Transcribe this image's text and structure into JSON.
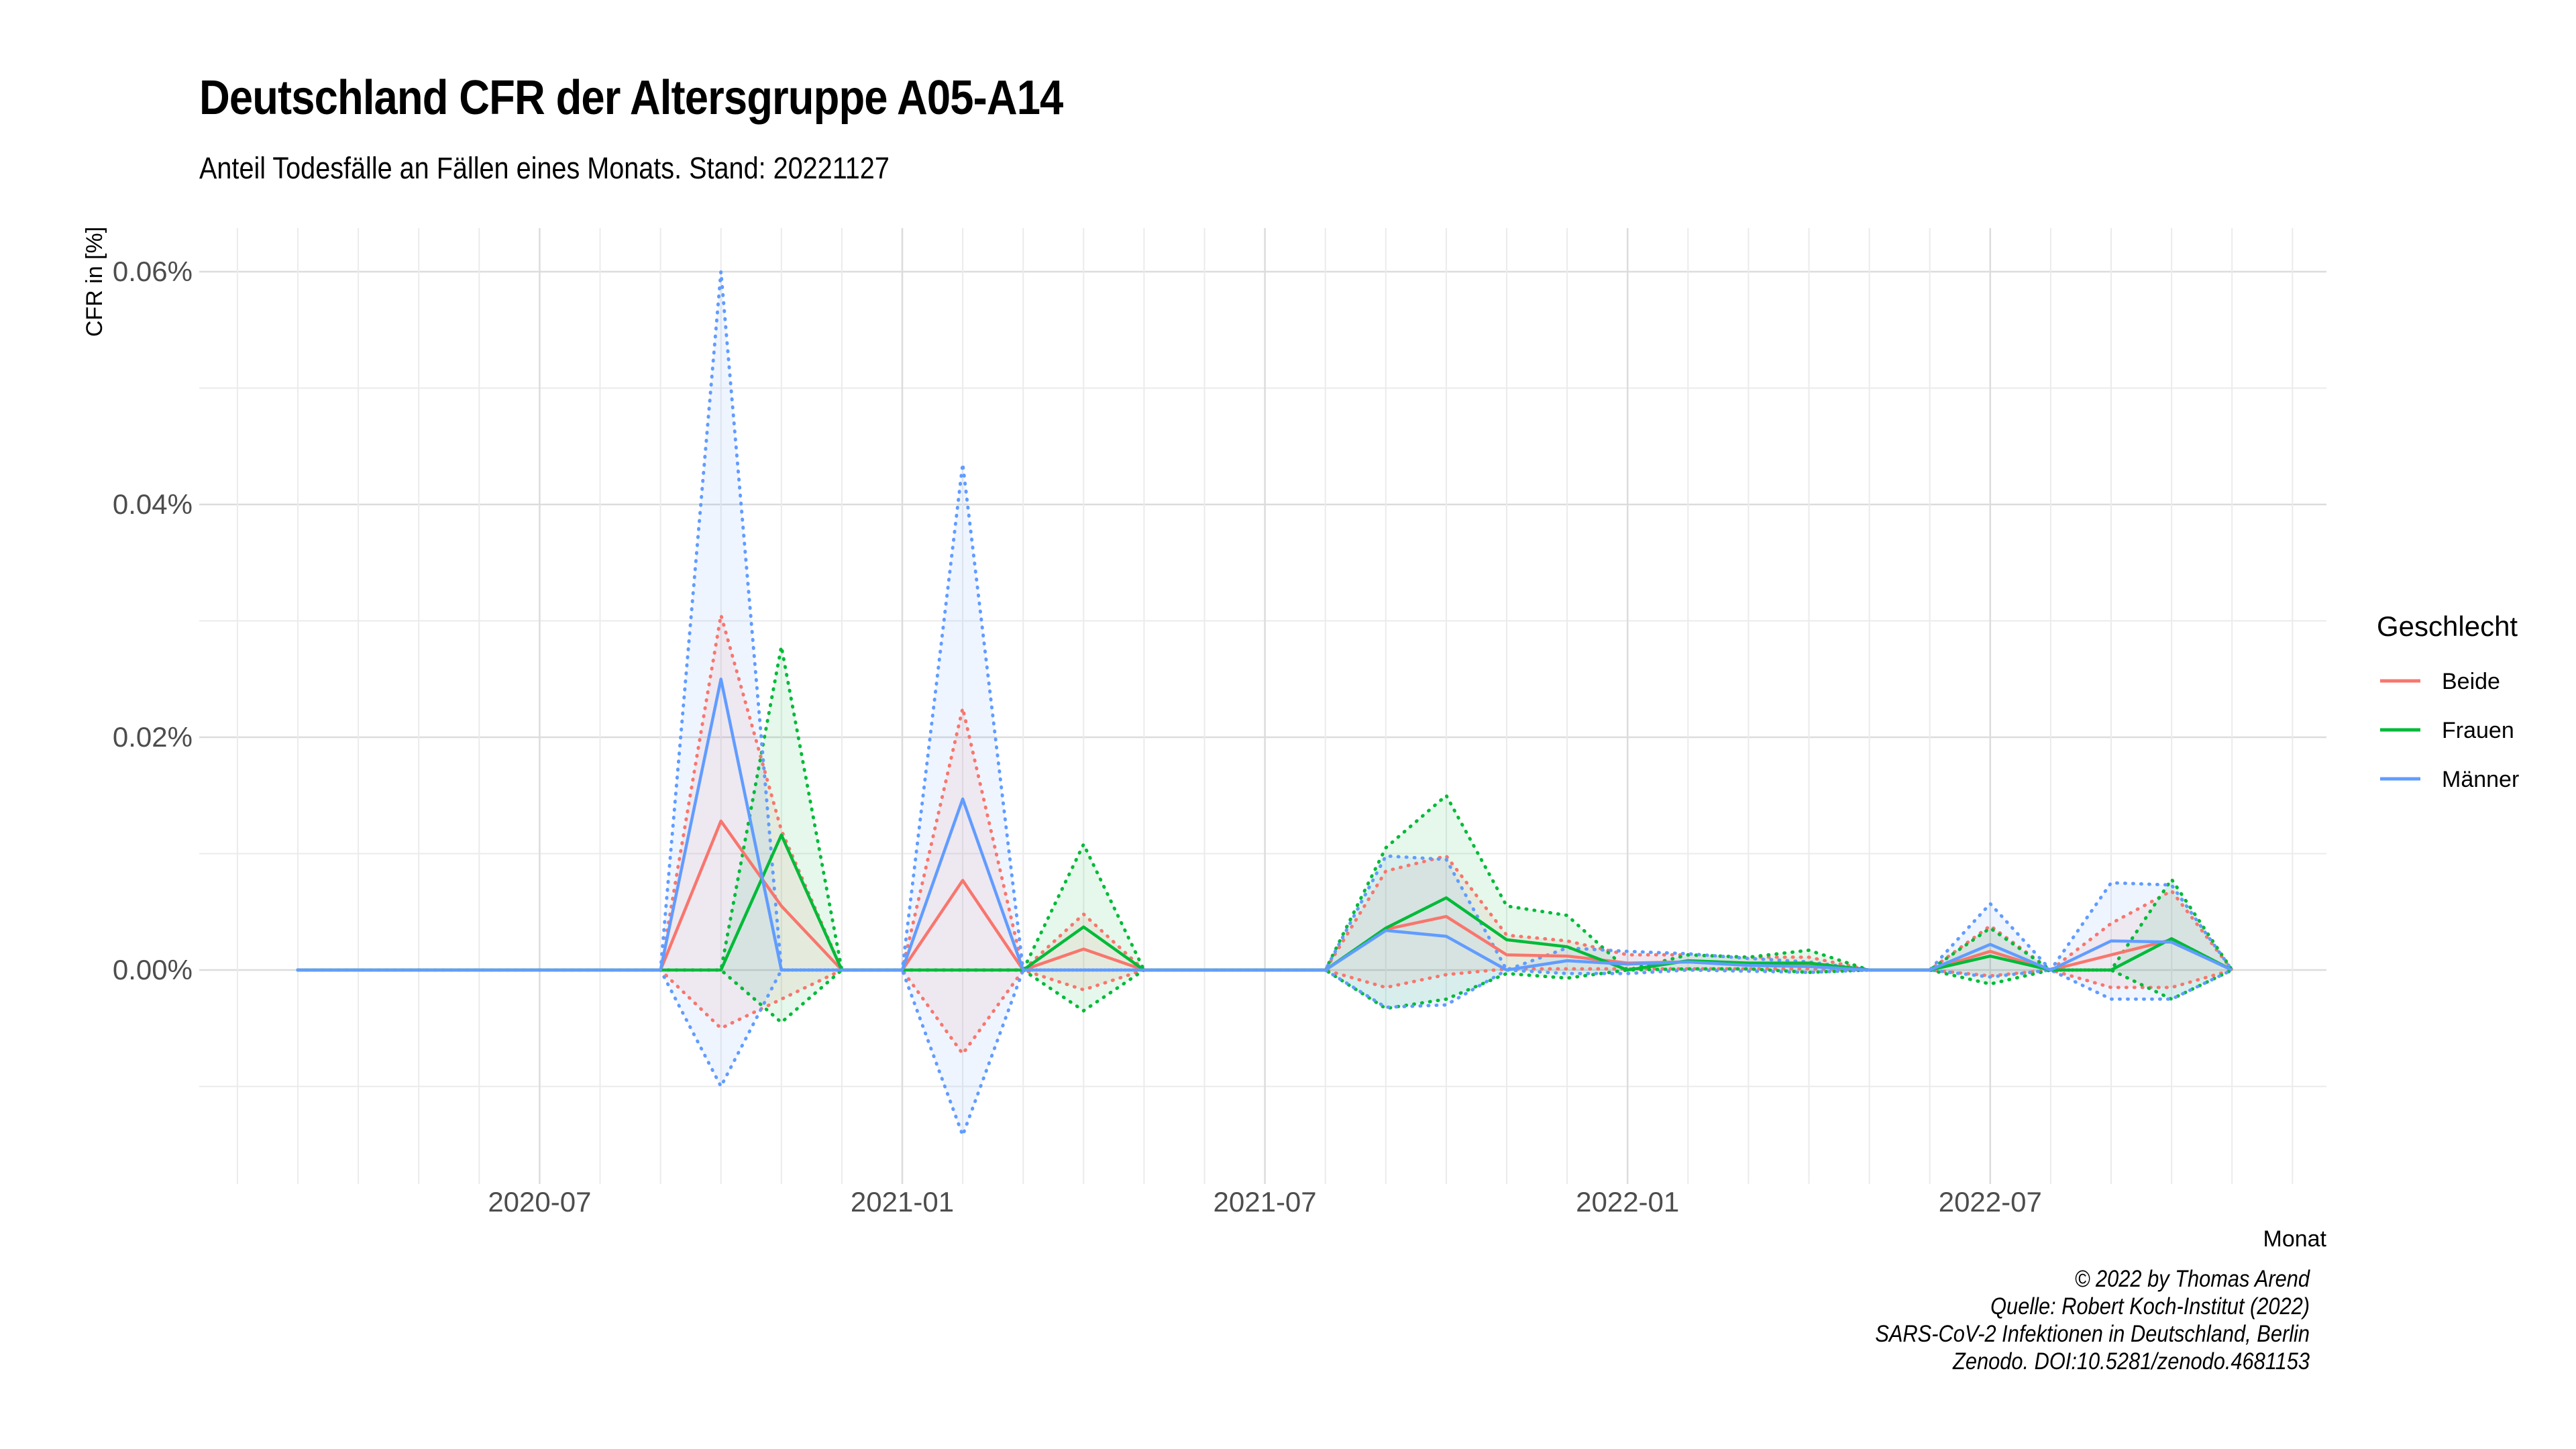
{
  "title": "Deutschland CFR der Altersgruppe A05-A14",
  "subtitle": "Anteil Todesfälle an Fällen eines Monats. Stand: 20221127",
  "caption": [
    "© 2022 by Thomas Arend",
    "Quelle: Robert Koch-Institut (2022)",
    "SARS-CoV-2 Infektionen in Deutschland, Berlin",
    "Zenodo. DOI:10.5281/zenodo.4681153"
  ],
  "chart_data": {
    "type": "line",
    "xlabel": "Monat",
    "ylabel": "CFR in [%]",
    "x": [
      "2020-03",
      "2020-04",
      "2020-05",
      "2020-06",
      "2020-07",
      "2020-08",
      "2020-09",
      "2020-10",
      "2020-11",
      "2020-12",
      "2021-01",
      "2021-02",
      "2021-03",
      "2021-04",
      "2021-05",
      "2021-06",
      "2021-07",
      "2021-08",
      "2021-09",
      "2021-10",
      "2021-11",
      "2021-12",
      "2022-01",
      "2022-02",
      "2022-03",
      "2022-04",
      "2022-05",
      "2022-06",
      "2022-07",
      "2022-08",
      "2022-09",
      "2022-10",
      "2022-11"
    ],
    "x_tick_labels": [
      "2020-07",
      "2021-01",
      "2021-07",
      "2022-01",
      "2022-07"
    ],
    "y_ticks": [
      0,
      0.02,
      0.04,
      0.06
    ],
    "y_tick_labels": [
      "0.00%",
      "0.02%",
      "0.04%",
      "0.06%"
    ],
    "ylim": [
      -0.018,
      0.064
    ],
    "grid": true,
    "legend": {
      "title": "Geschlecht",
      "position": "right"
    },
    "series": [
      {
        "name": "Beide",
        "color": "#F8766D",
        "values": [
          0,
          0,
          0,
          0,
          0,
          0,
          0,
          0.0128,
          0.0055,
          0,
          0,
          0.0077,
          0,
          0.0018,
          0,
          0,
          0,
          0,
          0.0035,
          0.0046,
          0.0013,
          0.0012,
          0.0006,
          0.0007,
          0.0005,
          0.0005,
          0,
          0,
          0.0016,
          0,
          0.0013,
          0.0026,
          0
        ],
        "lower": [
          0,
          0,
          0,
          0,
          0,
          0,
          0,
          -0.005,
          -0.0025,
          0,
          0,
          -0.0072,
          0,
          -0.0017,
          0,
          0,
          0,
          0,
          -0.0015,
          -0.0004,
          0.0001,
          0.0001,
          0.0001,
          0.0001,
          0.0001,
          0.0001,
          0,
          0,
          -0.0005,
          0,
          -0.0015,
          -0.0015,
          0
        ],
        "upper": [
          0,
          0,
          0,
          0,
          0,
          0,
          0,
          0.0305,
          0.012,
          0,
          0,
          0.0225,
          0,
          0.0048,
          0,
          0,
          0,
          0,
          0.0085,
          0.0098,
          0.003,
          0.0025,
          0.0013,
          0.0013,
          0.0011,
          0.0011,
          0,
          0,
          0.0038,
          0,
          0.004,
          0.0068,
          0
        ]
      },
      {
        "name": "Frauen",
        "color": "#00BA38",
        "values": [
          0,
          0,
          0,
          0,
          0,
          0,
          0,
          0,
          0.0116,
          0,
          0,
          0,
          0,
          0.0037,
          0,
          0,
          0,
          0,
          0.0036,
          0.0062,
          0.0026,
          0.002,
          0,
          0.0008,
          0.0006,
          0.0006,
          0,
          0,
          0.0012,
          0,
          0,
          0.0027,
          0
        ],
        "lower": [
          0,
          0,
          0,
          0,
          0,
          0,
          0,
          0,
          -0.0045,
          0,
          0,
          0,
          0,
          -0.0035,
          0,
          0,
          0,
          0,
          -0.0033,
          -0.0025,
          -0.0003,
          -0.0007,
          0,
          0.0001,
          0.0001,
          -0.0002,
          0,
          0,
          -0.0012,
          0,
          0,
          -0.0025,
          0
        ],
        "upper": [
          0,
          0,
          0,
          0,
          0,
          0,
          0,
          0,
          0.0278,
          0,
          0,
          0,
          0,
          0.0108,
          0,
          0,
          0,
          0,
          0.0105,
          0.015,
          0.0055,
          0.0047,
          0,
          0.0013,
          0.0011,
          0.0017,
          0,
          0,
          0.0036,
          0,
          0,
          0.0078,
          0
        ]
      },
      {
        "name": "Männer",
        "color": "#619CFF",
        "values": [
          0,
          0,
          0,
          0,
          0,
          0,
          0,
          0.025,
          0,
          0,
          0,
          0.0147,
          0,
          0,
          0,
          0,
          0,
          0,
          0.0034,
          0.0029,
          0,
          0.0008,
          0.0005,
          0.0007,
          0.0004,
          0.0003,
          0,
          0,
          0.0022,
          0,
          0.0025,
          0.0024,
          0
        ],
        "lower": [
          0,
          0,
          0,
          0,
          0,
          0,
          0,
          -0.01,
          0,
          0,
          0,
          -0.0142,
          0,
          0,
          0,
          0,
          0,
          0,
          -0.0032,
          -0.003,
          0,
          -0.0003,
          -0.0003,
          0,
          -0.0001,
          -0.0002,
          0,
          0,
          -0.0006,
          0,
          -0.0025,
          -0.0025,
          0
        ],
        "upper": [
          0,
          0,
          0,
          0,
          0,
          0,
          0,
          0.06,
          0,
          0,
          0,
          0.0435,
          0,
          0,
          0,
          0,
          0,
          0,
          0.0098,
          0.0095,
          0,
          0.0019,
          0.0016,
          0.0014,
          0.001,
          0.0007,
          0,
          0,
          0.0057,
          0,
          0.0075,
          0.0073,
          0
        ]
      }
    ]
  }
}
